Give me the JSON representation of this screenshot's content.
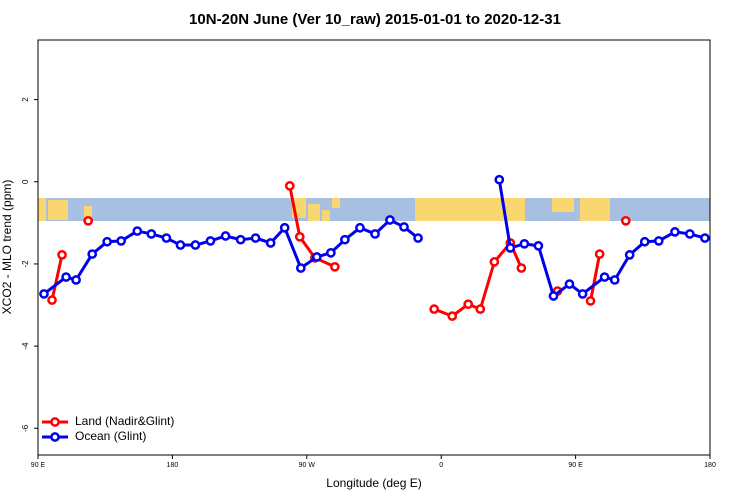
{
  "chart_data": {
    "type": "line",
    "title": "10N-20N June (Ver 10_raw)   2015-01-01 to 2020-12-31",
    "x_label": "Longitude (deg E)",
    "y_label": "XCO2 - MLO trend (ppm)",
    "xlim": [
      90,
      540
    ],
    "xticks": [
      {
        "value": 90,
        "label": "90 E"
      },
      180,
      {
        "value": 270,
        "label": "90 W"
      },
      {
        "value": 360,
        "label": "0"
      },
      {
        "value": 450,
        "label": "90 E"
      },
      {
        "value": 540,
        "label": "180"
      }
    ],
    "ylim": [
      -6.65,
      3.45
    ],
    "yticks": [
      2,
      0,
      -2,
      -4,
      -6
    ],
    "legend": "bottom-left",
    "series": [
      {
        "name": "Land (Nadir&Glint)",
        "color": "#ff0000",
        "x": [
          99.4,
          106.1,
          null,
          123.6,
          null,
          258.6,
          265.3,
          275.4,
          288.8,
          null,
          355.3,
          367.4,
          378.1,
          386.2,
          395.6,
          406.3,
          413.7,
          null,
          437.9,
          null,
          460.0,
          466.1,
          null,
          483.6
        ],
        "values": [
          -2.88,
          -1.78,
          null,
          -0.95,
          null,
          -0.1,
          -1.34,
          -1.85,
          -2.07,
          null,
          -3.1,
          -3.27,
          -2.98,
          -3.1,
          -1.95,
          -1.49,
          -2.1,
          null,
          -2.66,
          null,
          -2.9,
          -1.76,
          null,
          -0.95
        ]
      },
      {
        "name": "Ocean (Glint)",
        "color": "#0000ee",
        "x": [
          94.0,
          108.8,
          115.5,
          126.3,
          136.3,
          145.7,
          156.5,
          165.9,
          176.0,
          185.4,
          195.4,
          205.5,
          215.6,
          225.7,
          235.7,
          245.8,
          255.2,
          266.0,
          276.7,
          286.1,
          295.5,
          305.6,
          315.7,
          325.7,
          335.1,
          344.5,
          null,
          398.9,
          406.3,
          415.7,
          425.1,
          435.2,
          445.9,
          454.7,
          469.4,
          476.2,
          486.2,
          496.3,
          505.7,
          516.5,
          526.5,
          536.6
        ],
        "values": [
          -2.73,
          -2.32,
          -2.39,
          -1.76,
          -1.46,
          -1.44,
          -1.2,
          -1.27,
          -1.37,
          -1.54,
          -1.54,
          -1.44,
          -1.32,
          -1.41,
          -1.37,
          -1.49,
          -1.12,
          -2.1,
          -1.83,
          -1.73,
          -1.41,
          -1.12,
          -1.27,
          -0.93,
          -1.1,
          -1.37,
          null,
          0.05,
          -1.61,
          -1.51,
          -1.56,
          -2.78,
          -2.49,
          -2.73,
          -2.32,
          -2.39,
          -1.78,
          -1.46,
          -1.44,
          -1.22,
          -1.27,
          -1.37
        ]
      }
    ]
  }
}
